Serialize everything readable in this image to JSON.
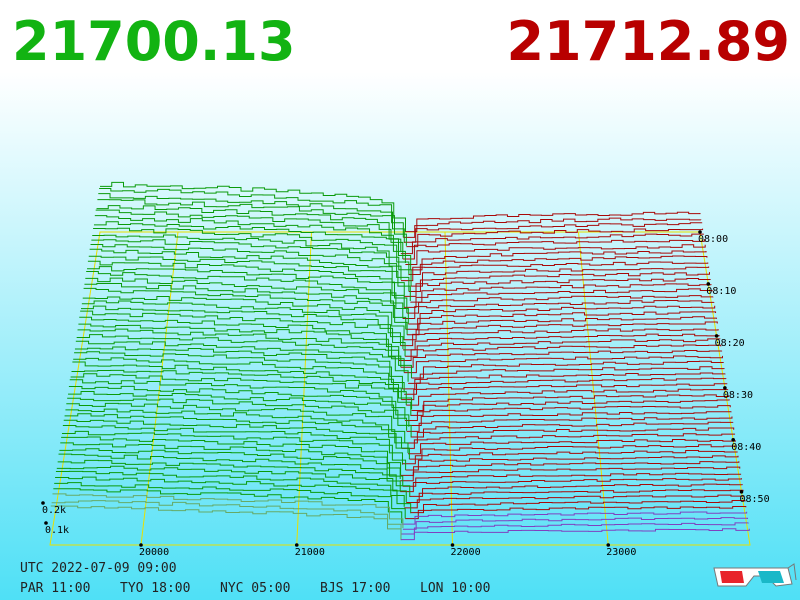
{
  "header": {
    "bid": "21700.13",
    "ask": "21712.89"
  },
  "axes": {
    "price_ticks": [
      "20000",
      "21000",
      "22000",
      "23000"
    ],
    "time_ticks": [
      "08:00",
      "08:10",
      "08:20",
      "08:30",
      "08:40",
      "08:50"
    ],
    "volume_ticks": [
      "0.2k",
      "0.1k"
    ]
  },
  "footer": {
    "utc": "UTC 2022-07-09 09:00",
    "cities": [
      "PAR 11:00",
      "TYO 18:00",
      "NYC 05:00",
      "BJS 17:00",
      "LON 10:00"
    ]
  }
}
